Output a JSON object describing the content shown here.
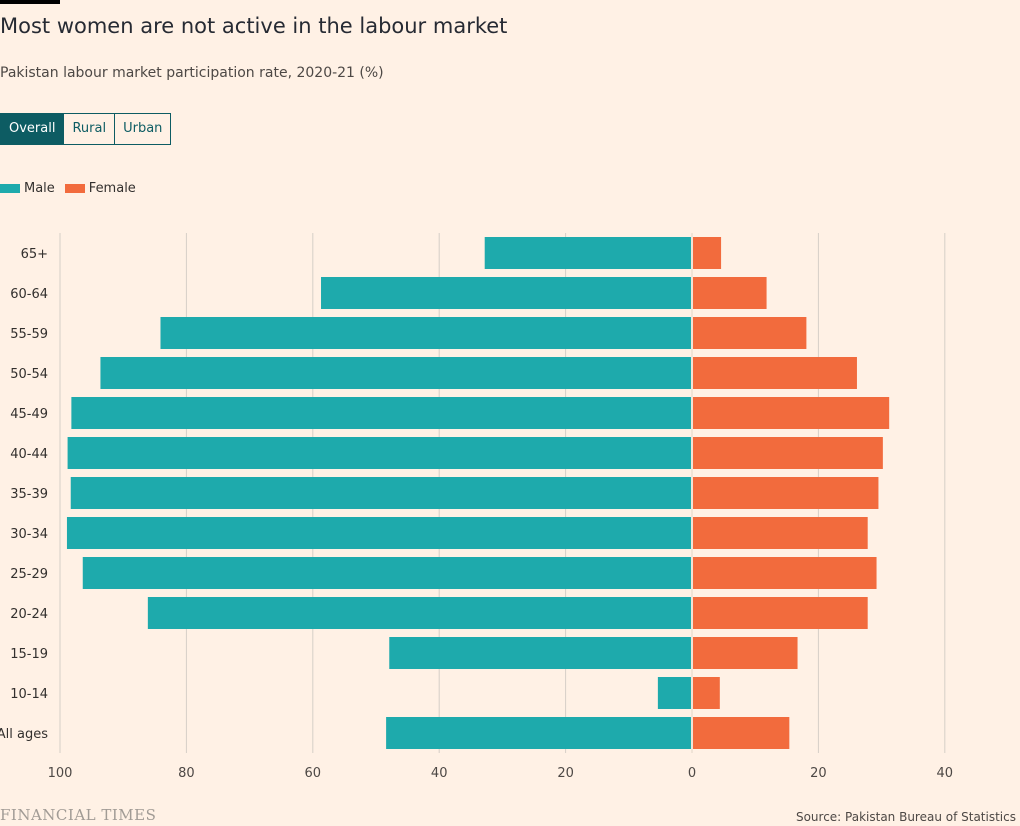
{
  "header": {
    "title": "Most women are not active in the labour market",
    "subtitle": "Pakistan labour market participation rate, 2020-21 (%)"
  },
  "tabs": [
    {
      "label": "Overall",
      "active": true
    },
    {
      "label": "Rural",
      "active": false
    },
    {
      "label": "Urban",
      "active": false
    }
  ],
  "legend": [
    {
      "label": "Male",
      "color": "#1eaaac"
    },
    {
      "label": "Female",
      "color": "#f26b3d"
    }
  ],
  "chart_data": {
    "type": "bar",
    "orientation": "horizontal-diverging",
    "categories": [
      "65+",
      "60-64",
      "55-59",
      "50-54",
      "45-49",
      "40-44",
      "35-39",
      "30-34",
      "25-29",
      "20-24",
      "15-19",
      "10-14",
      "All ages"
    ],
    "series": [
      {
        "name": "Male",
        "color": "#1eaaac",
        "values": [
          32.8,
          58.7,
          84.1,
          93.6,
          98.2,
          98.8,
          98.3,
          98.9,
          96.4,
          86.1,
          47.9,
          5.4,
          48.4
        ]
      },
      {
        "name": "Female",
        "color": "#f26b3d",
        "values": [
          4.6,
          11.8,
          18.1,
          26.1,
          31.2,
          30.2,
          29.5,
          27.8,
          29.2,
          27.8,
          16.7,
          4.4,
          15.4
        ]
      }
    ],
    "xlim_male": [
      0,
      100
    ],
    "xlim_female": [
      0,
      40
    ],
    "male_ticks": [
      100,
      80,
      60,
      40,
      20,
      0
    ],
    "female_ticks": [
      20,
      40
    ],
    "grid": true,
    "legend_position": "top-left"
  },
  "footer": {
    "brand": "FINANCIAL TIMES",
    "source": "Source: Pakistan Bureau of Statistics"
  }
}
